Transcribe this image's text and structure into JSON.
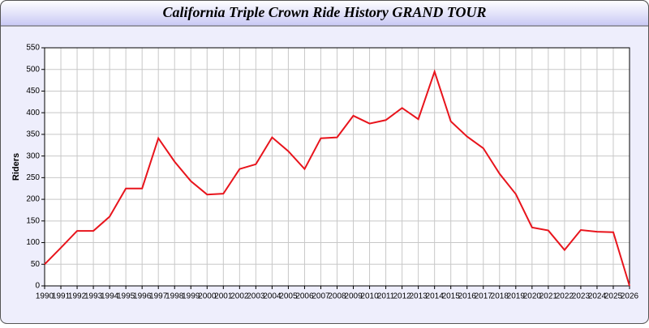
{
  "chart_data": {
    "type": "line",
    "title": "California Triple Crown Ride History GRAND TOUR",
    "y_label": "Riders",
    "x": [
      1990,
      1991,
      1992,
      1993,
      1994,
      1995,
      1996,
      1997,
      1998,
      1999,
      2000,
      2001,
      2002,
      2003,
      2004,
      2005,
      2006,
      2007,
      2008,
      2009,
      2010,
      2011,
      2012,
      2013,
      2014,
      2015,
      2016,
      2017,
      2018,
      2019,
      2020,
      2021,
      2022,
      2023,
      2024,
      2025,
      2026
    ],
    "series": [
      {
        "name": "Riders",
        "color": "#e8141c",
        "values": [
          50,
          88,
          127,
          127,
          160,
          225,
          225,
          341,
          287,
          242,
          211,
          213,
          270,
          281,
          343,
          311,
          270,
          341,
          343,
          393,
          375,
          383,
          411,
          385,
          495,
          380,
          345,
          318,
          259,
          212,
          135,
          128,
          83,
          129,
          125,
          124,
          0
        ]
      }
    ],
    "xlim": [
      1990,
      2026
    ],
    "xticks": [
      1990,
      1991,
      1992,
      1993,
      1994,
      1995,
      1996,
      1997,
      1998,
      1999,
      2000,
      2001,
      2002,
      2003,
      2004,
      2005,
      2006,
      2007,
      2008,
      2009,
      2010,
      2011,
      2012,
      2013,
      2014,
      2015,
      2016,
      2017,
      2018,
      2019,
      2020,
      2021,
      2022,
      2023,
      2024,
      2025,
      2026
    ],
    "ylim": [
      0,
      550
    ],
    "yticks": [
      0,
      50,
      100,
      150,
      200,
      250,
      300,
      350,
      400,
      450,
      500,
      550
    ],
    "grid": true
  }
}
